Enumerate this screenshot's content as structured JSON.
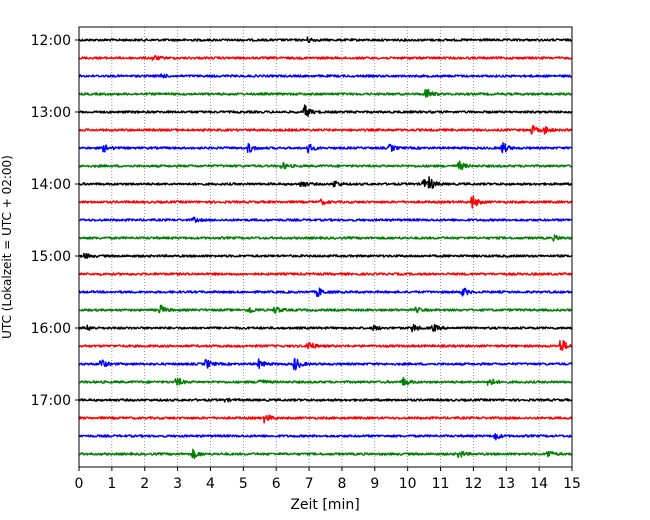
{
  "chart_data": {
    "type": "line",
    "title": "",
    "xlabel": "Zeit  [min]",
    "ylabel": "UTC (Lokalzeit = UTC + 02:00)",
    "xlim": [
      0,
      15
    ],
    "x_ticks": [
      "0",
      "1",
      "2",
      "3",
      "4",
      "5",
      "6",
      "7",
      "8",
      "9",
      "10",
      "11",
      "12",
      "13",
      "14",
      "15"
    ],
    "y_ticks": [
      "12:00",
      "13:00",
      "14:00",
      "15:00",
      "16:00",
      "17:00"
    ],
    "grid": "vertical dotted",
    "trace_colors": [
      "#000000",
      "#ff0000",
      "#0000ff",
      "#008000"
    ],
    "series": [
      {
        "start": "12:00",
        "color": "#000000",
        "events": [
          {
            "t": 7.0,
            "a": 2
          }
        ]
      },
      {
        "start": "12:15",
        "color": "#ff0000",
        "events": [
          {
            "t": 2.3,
            "a": 2
          }
        ]
      },
      {
        "start": "12:30",
        "color": "#0000ff",
        "events": [
          {
            "t": 2.5,
            "a": 2
          }
        ]
      },
      {
        "start": "12:45",
        "color": "#008000",
        "events": [
          {
            "t": 10.6,
            "a": 5
          }
        ]
      },
      {
        "start": "13:00",
        "color": "#000000",
        "events": [
          {
            "t": 6.9,
            "a": 6
          }
        ]
      },
      {
        "start": "13:15",
        "color": "#ff0000",
        "events": [
          {
            "t": 13.8,
            "a": 4
          },
          {
            "t": 14.2,
            "a": 3
          }
        ]
      },
      {
        "start": "13:30",
        "color": "#0000ff",
        "events": [
          {
            "t": 0.8,
            "a": 3
          },
          {
            "t": 5.2,
            "a": 4
          },
          {
            "t": 7.0,
            "a": 4
          },
          {
            "t": 9.5,
            "a": 3
          },
          {
            "t": 12.9,
            "a": 6
          }
        ]
      },
      {
        "start": "13:45",
        "color": "#008000",
        "events": [
          {
            "t": 6.2,
            "a": 3
          },
          {
            "t": 11.6,
            "a": 4
          }
        ]
      },
      {
        "start": "14:00",
        "color": "#000000",
        "events": [
          {
            "t": 6.8,
            "a": 3
          },
          {
            "t": 7.8,
            "a": 3
          },
          {
            "t": 10.5,
            "a": 4
          },
          {
            "t": 10.7,
            "a": 5
          }
        ]
      },
      {
        "start": "14:15",
        "color": "#ff0000",
        "events": [
          {
            "t": 12.0,
            "a": 6
          },
          {
            "t": 7.4,
            "a": 2
          }
        ]
      },
      {
        "start": "14:30",
        "color": "#0000ff",
        "events": [
          {
            "t": 3.5,
            "a": 2
          }
        ]
      },
      {
        "start": "14:45",
        "color": "#008000",
        "events": [
          {
            "t": 14.5,
            "a": 2
          }
        ]
      },
      {
        "start": "15:00",
        "color": "#000000",
        "events": [
          {
            "t": 0.2,
            "a": 2
          }
        ]
      },
      {
        "start": "15:15",
        "color": "#ff0000",
        "events": []
      },
      {
        "start": "15:30",
        "color": "#0000ff",
        "events": [
          {
            "t": 7.3,
            "a": 4
          },
          {
            "t": 11.7,
            "a": 4
          }
        ]
      },
      {
        "start": "15:45",
        "color": "#008000",
        "events": [
          {
            "t": 2.5,
            "a": 4
          },
          {
            "t": 5.2,
            "a": 3
          },
          {
            "t": 6.0,
            "a": 3
          },
          {
            "t": 10.3,
            "a": 2
          }
        ]
      },
      {
        "start": "16:00",
        "color": "#000000",
        "events": [
          {
            "t": 0.3,
            "a": 2
          },
          {
            "t": 9.0,
            "a": 2
          },
          {
            "t": 10.2,
            "a": 3
          },
          {
            "t": 10.8,
            "a": 3
          }
        ]
      },
      {
        "start": "16:15",
        "color": "#ff0000",
        "events": [
          {
            "t": 7.0,
            "a": 5
          },
          {
            "t": 14.7,
            "a": 6
          }
        ]
      },
      {
        "start": "16:30",
        "color": "#0000ff",
        "events": [
          {
            "t": 0.7,
            "a": 4
          },
          {
            "t": 3.9,
            "a": 4
          },
          {
            "t": 5.5,
            "a": 4
          },
          {
            "t": 6.6,
            "a": 6
          }
        ]
      },
      {
        "start": "16:45",
        "color": "#008000",
        "events": [
          {
            "t": 3.0,
            "a": 4
          },
          {
            "t": 5.5,
            "a": 3
          },
          {
            "t": 9.9,
            "a": 4
          },
          {
            "t": 12.5,
            "a": 4
          }
        ]
      },
      {
        "start": "17:00",
        "color": "#000000",
        "events": [
          {
            "t": 4.5,
            "a": 1
          }
        ]
      },
      {
        "start": "17:15",
        "color": "#ff0000",
        "events": [
          {
            "t": 5.7,
            "a": 4
          }
        ]
      },
      {
        "start": "17:30",
        "color": "#0000ff",
        "events": [
          {
            "t": 12.7,
            "a": 3
          }
        ]
      },
      {
        "start": "17:45",
        "color": "#008000",
        "events": [
          {
            "t": 3.5,
            "a": 4
          },
          {
            "t": 11.6,
            "a": 3
          },
          {
            "t": 14.3,
            "a": 3
          }
        ]
      }
    ]
  }
}
